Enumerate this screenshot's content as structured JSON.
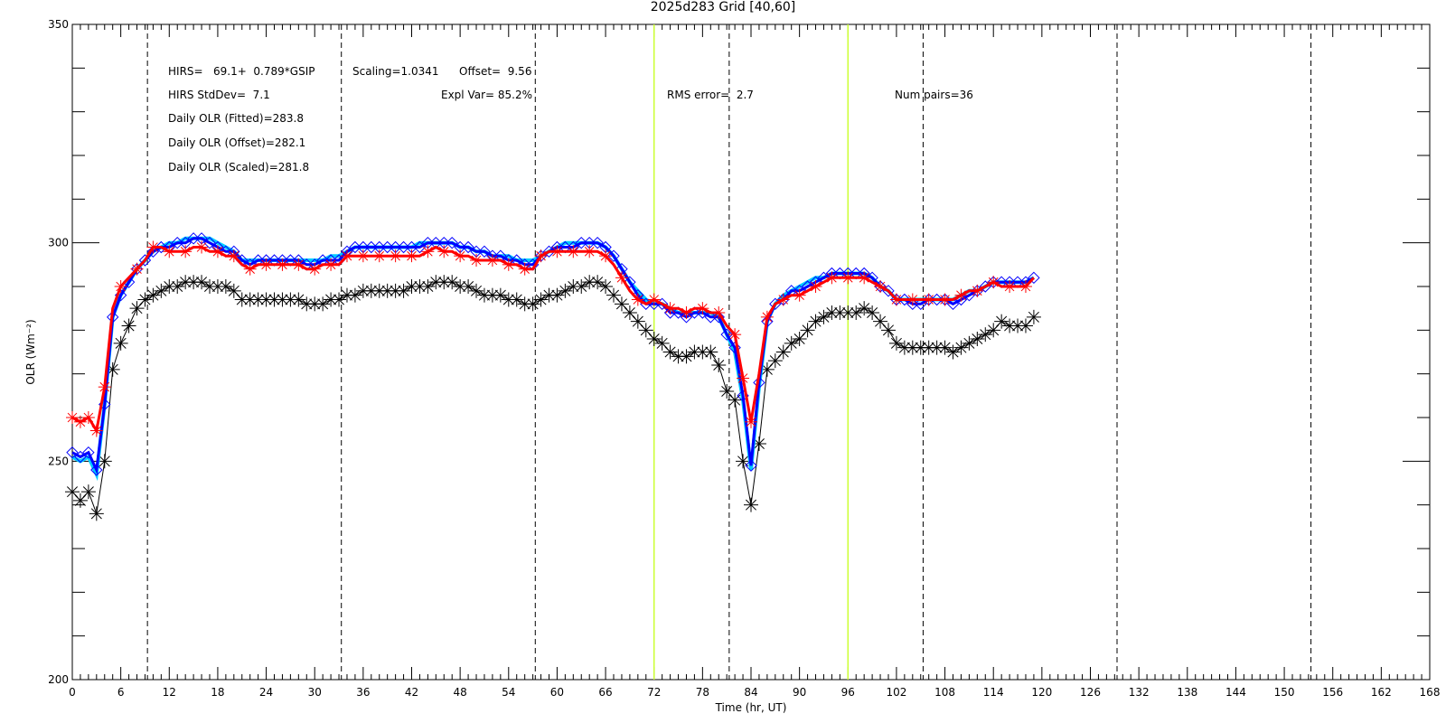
{
  "chart_data": {
    "type": "line",
    "title": "2025d283 Grid [40,60]",
    "xlabel": "Time (hr, UT)",
    "ylabel": "OLR (Wm⁻²)",
    "xlim": [
      0,
      168
    ],
    "ylim": [
      200,
      350
    ],
    "x_ticks": [
      0,
      6,
      12,
      18,
      24,
      30,
      36,
      42,
      48,
      54,
      60,
      66,
      72,
      78,
      84,
      90,
      96,
      102,
      108,
      114,
      120,
      126,
      132,
      138,
      144,
      150,
      156,
      162,
      168
    ],
    "y_ticks": [
      200,
      250,
      300,
      350
    ],
    "dashed_lines_x": [
      9.3,
      33.3,
      57.3,
      81.3,
      105.3,
      129.3,
      153.3
    ],
    "highlight_lines_x": [
      72,
      96
    ],
    "highlight_color": "#ccff33",
    "annotations": {
      "hirs_fit": "HIRS=   69.1+  0.789*GSIP",
      "scaling": "Scaling=1.0341",
      "offset": "Offset=  9.56",
      "hirs_stddev": "HIRS StdDev=  7.1",
      "expl_var": "Expl Var= 85.2%",
      "rms_error": "RMS error=  2.7",
      "num_pairs": "Num pairs=36",
      "daily_fitted": "Daily OLR (Fitted)=283.8",
      "daily_offset": "Daily OLR (Offset)=282.1",
      "daily_scaled": "Daily OLR (Scaled)=281.8"
    },
    "series": [
      {
        "marker": "asterisk",
        "color": "#000000",
        "x": [
          0,
          1,
          2,
          3,
          4,
          5,
          6,
          7,
          8,
          9,
          10,
          11,
          12,
          13,
          14,
          15,
          16,
          17,
          18,
          19,
          20,
          21,
          22,
          23,
          24,
          25,
          26,
          27,
          28,
          29,
          30,
          31,
          32,
          33,
          34,
          35,
          36,
          37,
          38,
          39,
          40,
          41,
          42,
          43,
          44,
          45,
          46,
          47,
          48,
          49,
          50,
          51,
          52,
          53,
          54,
          55,
          56,
          57,
          58,
          59,
          60,
          61,
          62,
          63,
          64,
          65,
          66,
          67,
          68,
          69,
          70,
          71,
          72,
          73,
          74,
          75,
          76,
          77,
          78,
          79,
          80,
          81,
          82,
          83,
          84,
          85,
          86,
          87,
          88,
          89,
          90,
          91,
          92,
          93,
          94,
          95,
          96,
          97,
          98,
          99,
          100,
          101,
          102,
          103,
          104,
          105,
          106,
          107,
          108,
          109,
          110,
          111,
          112,
          113,
          114,
          115,
          116,
          117,
          118,
          119
        ],
        "y": [
          243,
          241,
          243,
          238,
          250,
          271,
          277,
          281,
          285,
          287,
          288,
          289,
          290,
          290,
          291,
          291,
          291,
          290,
          290,
          290,
          289,
          287,
          287,
          287,
          287,
          287,
          287,
          287,
          287,
          286,
          286,
          286,
          287,
          287,
          288,
          288,
          289,
          289,
          289,
          289,
          289,
          289,
          290,
          290,
          290,
          291,
          291,
          291,
          290,
          290,
          289,
          288,
          288,
          288,
          287,
          287,
          286,
          286,
          287,
          288,
          288,
          289,
          290,
          290,
          291,
          291,
          290,
          288,
          286,
          284,
          282,
          280,
          278,
          277,
          275,
          274,
          274,
          275,
          275,
          275,
          272,
          266,
          264,
          250,
          240,
          254,
          271,
          273,
          275,
          277,
          278,
          280,
          282,
          283,
          284,
          284,
          284,
          284,
          285,
          284,
          282,
          280,
          277,
          276,
          276,
          276,
          276,
          276,
          276,
          275,
          276,
          277,
          278,
          279,
          280,
          282,
          281,
          281,
          281,
          283
        ]
      },
      {
        "name_hidden": "scaled",
        "marker": "diamond",
        "color": "#0000ff",
        "x": [
          0,
          1,
          2,
          3,
          4,
          5,
          6,
          7,
          8,
          9,
          10,
          11,
          12,
          13,
          14,
          15,
          16,
          17,
          18,
          19,
          20,
          21,
          22,
          23,
          24,
          25,
          26,
          27,
          28,
          29,
          30,
          31,
          32,
          33,
          34,
          35,
          36,
          37,
          38,
          39,
          40,
          41,
          42,
          43,
          44,
          45,
          46,
          47,
          48,
          49,
          50,
          51,
          52,
          53,
          54,
          55,
          56,
          57,
          58,
          59,
          60,
          61,
          62,
          63,
          64,
          65,
          66,
          67,
          68,
          69,
          70,
          71,
          72,
          73,
          74,
          75,
          76,
          77,
          78,
          79,
          80,
          81,
          82,
          83,
          84,
          85,
          86,
          87,
          88,
          89,
          90,
          91,
          92,
          93,
          94,
          95,
          96,
          97,
          98,
          99,
          100,
          101,
          102,
          103,
          104,
          105,
          106,
          107,
          108,
          109,
          110,
          111,
          112,
          113,
          114,
          115,
          116,
          117,
          118,
          119
        ],
        "y": [
          252,
          251,
          252,
          248,
          263,
          283,
          288,
          291,
          294,
          296,
          298,
          299,
          299,
          300,
          300,
          301,
          301,
          300,
          299,
          298,
          298,
          296,
          295,
          296,
          296,
          296,
          296,
          296,
          296,
          295,
          295,
          296,
          296,
          296,
          298,
          299,
          299,
          299,
          299,
          299,
          299,
          299,
          299,
          299,
          300,
          300,
          300,
          300,
          299,
          299,
          298,
          298,
          297,
          297,
          296,
          296,
          295,
          295,
          297,
          298,
          299,
          299,
          299,
          300,
          300,
          300,
          299,
          297,
          294,
          291,
          288,
          286,
          286,
          286,
          284,
          284,
          283,
          284,
          284,
          283,
          283,
          279,
          276,
          265,
          249,
          268,
          282,
          286,
          287,
          289,
          289,
          290,
          291,
          292,
          293,
          293,
          293,
          293,
          293,
          292,
          290,
          289,
          287,
          287,
          286,
          286,
          287,
          287,
          287,
          286,
          287,
          288,
          289,
          290,
          291,
          291,
          291,
          291,
          291,
          292
        ]
      },
      {
        "name_hidden": "offset",
        "marker": "none",
        "color": "#00ccff",
        "x": [
          0,
          1,
          2,
          3,
          4,
          5,
          6,
          7,
          8,
          9,
          10,
          11,
          12,
          13,
          14,
          15,
          16,
          17,
          18,
          19,
          20,
          21,
          22,
          23,
          24,
          25,
          26,
          27,
          28,
          29,
          30,
          31,
          32,
          33,
          34,
          35,
          36,
          37,
          38,
          39,
          40,
          41,
          42,
          43,
          44,
          45,
          46,
          47,
          48,
          49,
          50,
          51,
          52,
          53,
          54,
          55,
          56,
          57,
          58,
          59,
          60,
          61,
          62,
          63,
          64,
          65,
          66,
          67,
          68,
          69,
          70,
          71,
          72,
          73,
          74,
          75,
          76,
          77,
          78,
          79,
          80,
          81,
          82,
          83,
          84,
          85,
          86,
          87,
          88,
          89,
          90,
          91,
          92,
          93,
          94,
          95,
          96,
          97,
          98,
          99,
          100,
          101,
          102,
          103,
          104,
          105,
          106,
          107,
          108,
          109,
          110,
          111,
          112,
          113,
          114,
          115,
          116,
          117,
          118,
          119
        ],
        "y": [
          251,
          250,
          251,
          247,
          263,
          283,
          288,
          291,
          294,
          296,
          298,
          299,
          300,
          300,
          301,
          301,
          301,
          301,
          300,
          299,
          298,
          296,
          296,
          296,
          296,
          296,
          296,
          296,
          296,
          296,
          296,
          296,
          297,
          297,
          298,
          299,
          299,
          299,
          299,
          299,
          299,
          299,
          299,
          300,
          300,
          300,
          300,
          300,
          299,
          299,
          298,
          298,
          297,
          297,
          297,
          296,
          296,
          296,
          297,
          298,
          299,
          300,
          300,
          300,
          300,
          300,
          299,
          297,
          294,
          291,
          289,
          287,
          286,
          286,
          285,
          284,
          284,
          284,
          284,
          284,
          283,
          279,
          275,
          264,
          248,
          267,
          282,
          286,
          288,
          289,
          290,
          291,
          292,
          292,
          293,
          293,
          293,
          293,
          293,
          292,
          290,
          289,
          287,
          287,
          287,
          287,
          287,
          287,
          287,
          287,
          288,
          289,
          289,
          290,
          291,
          291,
          291,
          291,
          291,
          292
        ]
      },
      {
        "name_hidden": "fitted",
        "marker": "asterisk",
        "color": "#ff0000",
        "x": [
          0,
          1,
          2,
          3,
          4,
          5,
          6,
          7,
          8,
          9,
          10,
          11,
          12,
          13,
          14,
          15,
          16,
          17,
          18,
          19,
          20,
          21,
          22,
          23,
          24,
          25,
          26,
          27,
          28,
          29,
          30,
          31,
          32,
          33,
          34,
          35,
          36,
          37,
          38,
          39,
          40,
          41,
          42,
          43,
          44,
          45,
          46,
          47,
          48,
          49,
          50,
          51,
          52,
          53,
          54,
          55,
          56,
          57,
          58,
          59,
          60,
          61,
          62,
          63,
          64,
          65,
          66,
          67,
          68,
          69,
          70,
          71,
          72,
          73,
          74,
          75,
          76,
          77,
          78,
          79,
          80,
          81,
          82,
          83,
          84,
          85,
          86,
          87,
          88,
          89,
          90,
          91,
          92,
          93,
          94,
          95,
          96,
          97,
          98,
          99,
          100,
          101,
          102,
          103,
          104,
          105,
          106,
          107,
          108,
          109,
          110,
          111,
          112,
          113,
          114,
          115,
          116,
          117,
          118,
          119
        ],
        "y": [
          260,
          259,
          260,
          257,
          267,
          285,
          290,
          292,
          294,
          296,
          299,
          299,
          298,
          298,
          298,
          299,
          299,
          298,
          298,
          297,
          297,
          295,
          294,
          295,
          295,
          295,
          295,
          295,
          295,
          294,
          294,
          295,
          295,
          295,
          297,
          297,
          297,
          297,
          297,
          297,
          297,
          297,
          297,
          297,
          298,
          299,
          298,
          298,
          297,
          297,
          296,
          296,
          296,
          296,
          295,
          295,
          294,
          294,
          297,
          298,
          298,
          298,
          298,
          298,
          298,
          298,
          297,
          295,
          292,
          289,
          287,
          286,
          287,
          286,
          285,
          285,
          284,
          285,
          285,
          284,
          284,
          281,
          279,
          269,
          259,
          270,
          283,
          286,
          287,
          288,
          288,
          289,
          290,
          291,
          292,
          292,
          292,
          292,
          292,
          291,
          290,
          289,
          287,
          287,
          287,
          287,
          287,
          287,
          287,
          287,
          288,
          289,
          289,
          290,
          291,
          290,
          290,
          290,
          290,
          292
        ]
      }
    ]
  }
}
